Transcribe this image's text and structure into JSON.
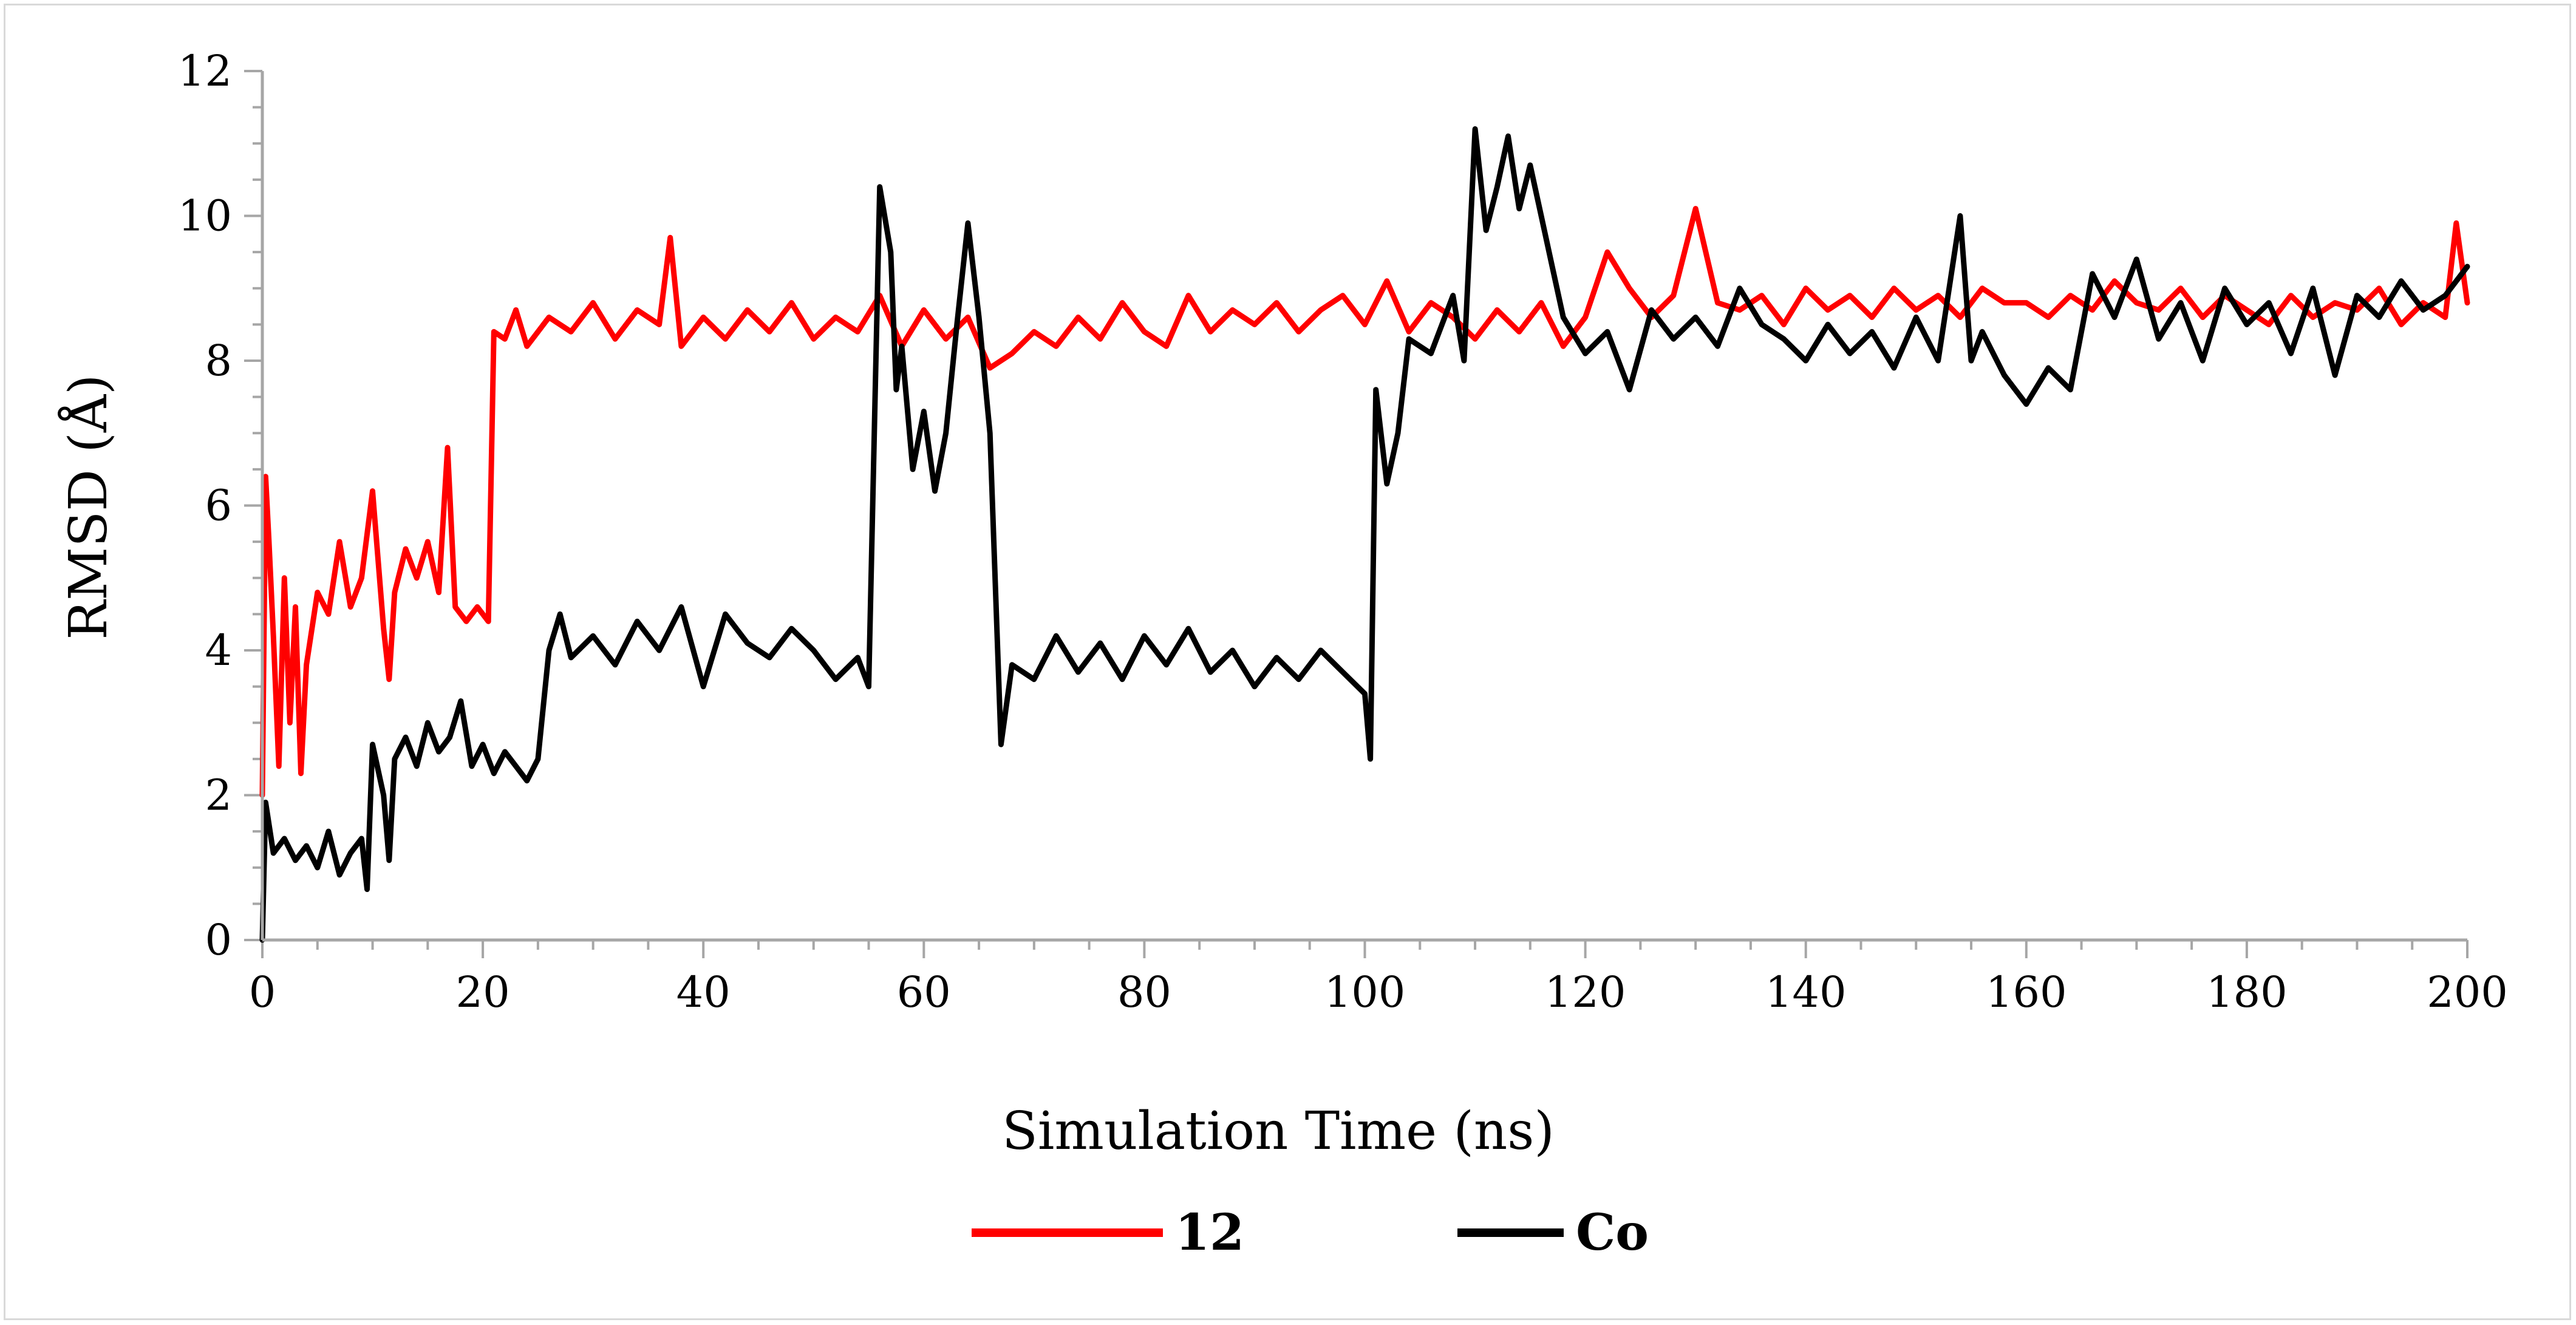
{
  "chart_data": {
    "type": "line",
    "title": "",
    "xlabel": "Simulation Time (ns)",
    "ylabel": "RMSD (Å)",
    "xlim": [
      0,
      200
    ],
    "ylim": [
      0,
      12
    ],
    "x_ticks": [
      0,
      20,
      40,
      60,
      80,
      100,
      120,
      140,
      160,
      180,
      200
    ],
    "y_ticks": [
      0,
      2,
      4,
      6,
      8,
      10,
      12
    ],
    "grid": false,
    "legend_position": "bottom",
    "series": [
      {
        "name": "12",
        "color": "#ff0000",
        "points": [
          [
            0,
            2.0
          ],
          [
            0.3,
            6.4
          ],
          [
            0.6,
            5.5
          ],
          [
            1,
            4.2
          ],
          [
            1.5,
            2.4
          ],
          [
            2,
            5.0
          ],
          [
            2.5,
            3.0
          ],
          [
            3,
            4.6
          ],
          [
            3.5,
            2.3
          ],
          [
            4,
            3.8
          ],
          [
            5,
            4.8
          ],
          [
            6,
            4.5
          ],
          [
            7,
            5.5
          ],
          [
            8,
            4.6
          ],
          [
            9,
            5.0
          ],
          [
            10,
            6.2
          ],
          [
            11,
            4.3
          ],
          [
            11.5,
            3.6
          ],
          [
            12,
            4.8
          ],
          [
            13,
            5.4
          ],
          [
            14,
            5.0
          ],
          [
            15,
            5.5
          ],
          [
            16,
            4.8
          ],
          [
            16.8,
            6.8
          ],
          [
            17.5,
            4.6
          ],
          [
            18.5,
            4.4
          ],
          [
            19.5,
            4.6
          ],
          [
            20.5,
            4.4
          ],
          [
            21,
            8.4
          ],
          [
            22,
            8.3
          ],
          [
            23,
            8.7
          ],
          [
            24,
            8.2
          ],
          [
            26,
            8.6
          ],
          [
            28,
            8.4
          ],
          [
            30,
            8.8
          ],
          [
            32,
            8.3
          ],
          [
            34,
            8.7
          ],
          [
            36,
            8.5
          ],
          [
            37,
            9.7
          ],
          [
            38,
            8.2
          ],
          [
            40,
            8.6
          ],
          [
            42,
            8.3
          ],
          [
            44,
            8.7
          ],
          [
            46,
            8.4
          ],
          [
            48,
            8.8
          ],
          [
            50,
            8.3
          ],
          [
            52,
            8.6
          ],
          [
            54,
            8.4
          ],
          [
            56,
            8.9
          ],
          [
            58,
            8.2
          ],
          [
            60,
            8.7
          ],
          [
            62,
            8.3
          ],
          [
            64,
            8.6
          ],
          [
            66,
            7.9
          ],
          [
            68,
            8.1
          ],
          [
            70,
            8.4
          ],
          [
            72,
            8.2
          ],
          [
            74,
            8.6
          ],
          [
            76,
            8.3
          ],
          [
            78,
            8.8
          ],
          [
            80,
            8.4
          ],
          [
            82,
            8.2
          ],
          [
            84,
            8.9
          ],
          [
            86,
            8.4
          ],
          [
            88,
            8.7
          ],
          [
            90,
            8.5
          ],
          [
            92,
            8.8
          ],
          [
            94,
            8.4
          ],
          [
            96,
            8.7
          ],
          [
            98,
            8.9
          ],
          [
            100,
            8.5
          ],
          [
            102,
            9.1
          ],
          [
            104,
            8.4
          ],
          [
            106,
            8.8
          ],
          [
            108,
            8.6
          ],
          [
            110,
            8.3
          ],
          [
            112,
            8.7
          ],
          [
            114,
            8.4
          ],
          [
            116,
            8.8
          ],
          [
            118,
            8.2
          ],
          [
            120,
            8.6
          ],
          [
            122,
            9.5
          ],
          [
            124,
            9.0
          ],
          [
            126,
            8.6
          ],
          [
            128,
            8.9
          ],
          [
            130,
            10.1
          ],
          [
            132,
            8.8
          ],
          [
            134,
            8.7
          ],
          [
            136,
            8.9
          ],
          [
            138,
            8.5
          ],
          [
            140,
            9.0
          ],
          [
            142,
            8.7
          ],
          [
            144,
            8.9
          ],
          [
            146,
            8.6
          ],
          [
            148,
            9.0
          ],
          [
            150,
            8.7
          ],
          [
            152,
            8.9
          ],
          [
            154,
            8.6
          ],
          [
            156,
            9.0
          ],
          [
            158,
            8.8
          ],
          [
            160,
            8.8
          ],
          [
            162,
            8.6
          ],
          [
            164,
            8.9
          ],
          [
            166,
            8.7
          ],
          [
            168,
            9.1
          ],
          [
            170,
            8.8
          ],
          [
            172,
            8.7
          ],
          [
            174,
            9.0
          ],
          [
            176,
            8.6
          ],
          [
            178,
            8.9
          ],
          [
            180,
            8.7
          ],
          [
            182,
            8.5
          ],
          [
            184,
            8.9
          ],
          [
            186,
            8.6
          ],
          [
            188,
            8.8
          ],
          [
            190,
            8.7
          ],
          [
            192,
            9.0
          ],
          [
            194,
            8.5
          ],
          [
            196,
            8.8
          ],
          [
            198,
            8.6
          ],
          [
            199,
            9.9
          ],
          [
            200,
            8.8
          ]
        ]
      },
      {
        "name": "Co",
        "color": "#000000",
        "points": [
          [
            0,
            0.0
          ],
          [
            0.3,
            1.9
          ],
          [
            1,
            1.2
          ],
          [
            2,
            1.4
          ],
          [
            3,
            1.1
          ],
          [
            4,
            1.3
          ],
          [
            5,
            1.0
          ],
          [
            6,
            1.5
          ],
          [
            7,
            0.9
          ],
          [
            8,
            1.2
          ],
          [
            9,
            1.4
          ],
          [
            9.5,
            0.7
          ],
          [
            10,
            2.7
          ],
          [
            11,
            2.0
          ],
          [
            11.5,
            1.1
          ],
          [
            12,
            2.5
          ],
          [
            13,
            2.8
          ],
          [
            14,
            2.4
          ],
          [
            15,
            3.0
          ],
          [
            16,
            2.6
          ],
          [
            17,
            2.8
          ],
          [
            18,
            3.3
          ],
          [
            19,
            2.4
          ],
          [
            20,
            2.7
          ],
          [
            21,
            2.3
          ],
          [
            22,
            2.6
          ],
          [
            23,
            2.4
          ],
          [
            24,
            2.2
          ],
          [
            25,
            2.5
          ],
          [
            26,
            4.0
          ],
          [
            27,
            4.5
          ],
          [
            28,
            3.9
          ],
          [
            30,
            4.2
          ],
          [
            32,
            3.8
          ],
          [
            34,
            4.4
          ],
          [
            36,
            4.0
          ],
          [
            38,
            4.6
          ],
          [
            40,
            3.5
          ],
          [
            42,
            4.5
          ],
          [
            44,
            4.1
          ],
          [
            46,
            3.9
          ],
          [
            48,
            4.3
          ],
          [
            50,
            4.0
          ],
          [
            52,
            3.6
          ],
          [
            54,
            3.9
          ],
          [
            55,
            3.5
          ],
          [
            56,
            10.4
          ],
          [
            57,
            9.5
          ],
          [
            57.5,
            7.6
          ],
          [
            58,
            8.2
          ],
          [
            59,
            6.5
          ],
          [
            60,
            7.3
          ],
          [
            61,
            6.2
          ],
          [
            62,
            7.0
          ],
          [
            63,
            8.5
          ],
          [
            64,
            9.9
          ],
          [
            65,
            8.6
          ],
          [
            66,
            7.0
          ],
          [
            67,
            2.7
          ],
          [
            68,
            3.8
          ],
          [
            70,
            3.6
          ],
          [
            72,
            4.2
          ],
          [
            74,
            3.7
          ],
          [
            76,
            4.1
          ],
          [
            78,
            3.6
          ],
          [
            80,
            4.2
          ],
          [
            82,
            3.8
          ],
          [
            84,
            4.3
          ],
          [
            86,
            3.7
          ],
          [
            88,
            4.0
          ],
          [
            90,
            3.5
          ],
          [
            92,
            3.9
          ],
          [
            94,
            3.6
          ],
          [
            96,
            4.0
          ],
          [
            98,
            3.7
          ],
          [
            100,
            3.4
          ],
          [
            100.5,
            2.5
          ],
          [
            101,
            7.6
          ],
          [
            102,
            6.3
          ],
          [
            103,
            7.0
          ],
          [
            104,
            8.3
          ],
          [
            106,
            8.1
          ],
          [
            108,
            8.9
          ],
          [
            109,
            8.0
          ],
          [
            110,
            11.2
          ],
          [
            111,
            9.8
          ],
          [
            112,
            10.4
          ],
          [
            113,
            11.1
          ],
          [
            114,
            10.1
          ],
          [
            115,
            10.7
          ],
          [
            116,
            10.0
          ],
          [
            117,
            9.3
          ],
          [
            118,
            8.6
          ],
          [
            120,
            8.1
          ],
          [
            122,
            8.4
          ],
          [
            124,
            7.6
          ],
          [
            126,
            8.7
          ],
          [
            128,
            8.3
          ],
          [
            130,
            8.6
          ],
          [
            132,
            8.2
          ],
          [
            134,
            9.0
          ],
          [
            136,
            8.5
          ],
          [
            138,
            8.3
          ],
          [
            140,
            8.0
          ],
          [
            142,
            8.5
          ],
          [
            144,
            8.1
          ],
          [
            146,
            8.4
          ],
          [
            148,
            7.9
          ],
          [
            150,
            8.6
          ],
          [
            152,
            8.0
          ],
          [
            154,
            10.0
          ],
          [
            155,
            8.0
          ],
          [
            156,
            8.4
          ],
          [
            158,
            7.8
          ],
          [
            160,
            7.4
          ],
          [
            162,
            7.9
          ],
          [
            164,
            7.6
          ],
          [
            166,
            9.2
          ],
          [
            168,
            8.6
          ],
          [
            170,
            9.4
          ],
          [
            172,
            8.3
          ],
          [
            174,
            8.8
          ],
          [
            176,
            8.0
          ],
          [
            178,
            9.0
          ],
          [
            180,
            8.5
          ],
          [
            182,
            8.8
          ],
          [
            184,
            8.1
          ],
          [
            186,
            9.0
          ],
          [
            188,
            7.8
          ],
          [
            190,
            8.9
          ],
          [
            192,
            8.6
          ],
          [
            194,
            9.1
          ],
          [
            196,
            8.7
          ],
          [
            198,
            8.9
          ],
          [
            200,
            9.3
          ]
        ]
      }
    ]
  }
}
